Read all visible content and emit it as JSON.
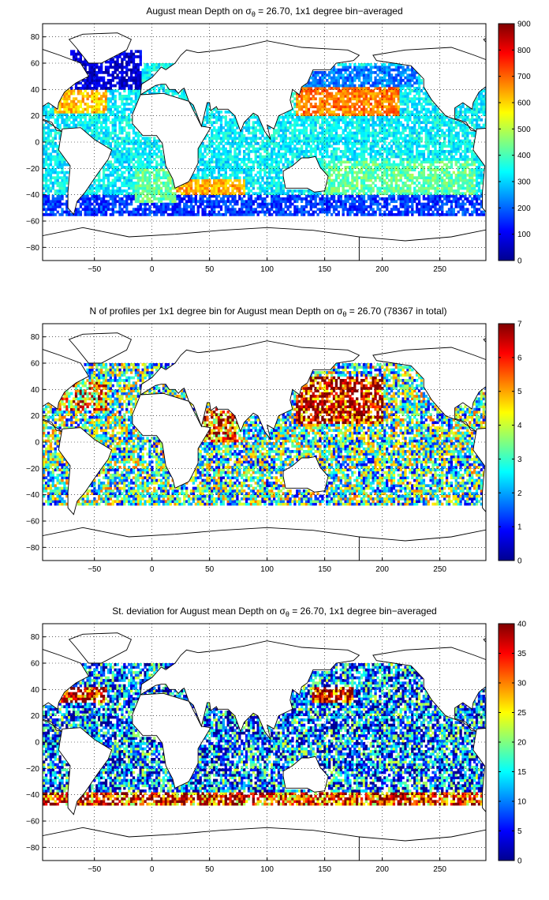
{
  "colormap": [
    "#00008f",
    "#0000ff",
    "#0080ff",
    "#00ffff",
    "#80ff80",
    "#ffff00",
    "#ff8000",
    "#ff0000",
    "#800000"
  ],
  "land_color": "#ffffff",
  "grid": true,
  "chart_data": [
    {
      "type": "heatmap",
      "title_parts": {
        "before": "August mean Depth on ",
        "symbol": "σ",
        "subscript": "θ",
        "after": " = 26.70, 1x1 degree bin−averaged"
      },
      "xlim": [
        -95,
        290
      ],
      "ylim": [
        -90,
        90
      ],
      "xticks": [
        -50,
        0,
        50,
        100,
        150,
        200,
        250
      ],
      "yticks": [
        -80,
        -60,
        -40,
        -20,
        0,
        20,
        40,
        60,
        80
      ],
      "colorbar": {
        "min": 0,
        "max": 900,
        "ticks": [
          0,
          100,
          200,
          300,
          400,
          500,
          600,
          700,
          800,
          900
        ]
      },
      "regions": [
        {
          "lon": [
            -95,
            290
          ],
          "lat": [
            -48,
            60
          ],
          "value": 330
        },
        {
          "lon": [
            -85,
            -40
          ],
          "lat": [
            22,
            40
          ],
          "value": 620
        },
        {
          "lon": [
            -70,
            -10
          ],
          "lat": [
            40,
            70
          ],
          "value": 70
        },
        {
          "lon": [
            125,
            215
          ],
          "lat": [
            20,
            42
          ],
          "value": 680
        },
        {
          "lon": [
            20,
            80
          ],
          "lat": [
            -45,
            -28
          ],
          "value": 640
        },
        {
          "lon": [
            130,
            230
          ],
          "lat": [
            42,
            58
          ],
          "value": 220
        },
        {
          "lon": [
            -95,
            290
          ],
          "lat": [
            -55,
            -40
          ],
          "value": 160
        },
        {
          "lon": [
            -15,
            20
          ],
          "lat": [
            -45,
            -20
          ],
          "value": 420
        },
        {
          "lon": [
            150,
            280
          ],
          "lat": [
            -40,
            -15
          ],
          "value": 420
        }
      ]
    },
    {
      "type": "heatmap",
      "title_parts": {
        "before": "N of profiles per 1x1 degree bin for August mean Depth on ",
        "symbol": "σ",
        "subscript": "θ",
        "after": " = 26.70 (78367 in total)"
      },
      "xlim": [
        -95,
        290
      ],
      "ylim": [
        -90,
        90
      ],
      "xticks": [
        -50,
        0,
        50,
        100,
        150,
        200,
        250
      ],
      "yticks": [
        -80,
        -60,
        -40,
        -20,
        0,
        20,
        40,
        60,
        80
      ],
      "colorbar": {
        "min": 0,
        "max": 7,
        "ticks": [
          0,
          1,
          2,
          3,
          4,
          5,
          6,
          7
        ]
      },
      "regions": [
        {
          "lon": [
            -95,
            290
          ],
          "lat": [
            -48,
            60
          ],
          "value": 3
        },
        {
          "lon": [
            125,
            200
          ],
          "lat": [
            15,
            50
          ],
          "value": 6.5
        },
        {
          "lon": [
            -80,
            -40
          ],
          "lat": [
            25,
            45
          ],
          "value": 5
        },
        {
          "lon": [
            40,
            75
          ],
          "lat": [
            0,
            25
          ],
          "value": 5.5
        }
      ]
    },
    {
      "type": "heatmap",
      "title_parts": {
        "before": "St. deviation for August mean Depth on ",
        "symbol": "σ",
        "subscript": "θ",
        "after": " = 26.70, 1x1 degree bin−averaged"
      },
      "xlim": [
        -95,
        290
      ],
      "ylim": [
        -90,
        90
      ],
      "xticks": [
        -50,
        0,
        50,
        100,
        150,
        200,
        250
      ],
      "yticks": [
        -80,
        -60,
        -40,
        -20,
        0,
        20,
        40,
        60,
        80
      ],
      "colorbar": {
        "min": 0,
        "max": 40,
        "ticks": [
          0,
          5,
          10,
          15,
          20,
          25,
          30,
          35,
          40
        ]
      },
      "regions": [
        {
          "lon": [
            -95,
            290
          ],
          "lat": [
            -48,
            60
          ],
          "value": 10
        },
        {
          "lon": [
            140,
            175
          ],
          "lat": [
            30,
            42
          ],
          "value": 38
        },
        {
          "lon": [
            -80,
            -40
          ],
          "lat": [
            30,
            42
          ],
          "value": 36
        },
        {
          "lon": [
            -95,
            290
          ],
          "lat": [
            -48,
            -38
          ],
          "value": 34
        }
      ]
    }
  ]
}
